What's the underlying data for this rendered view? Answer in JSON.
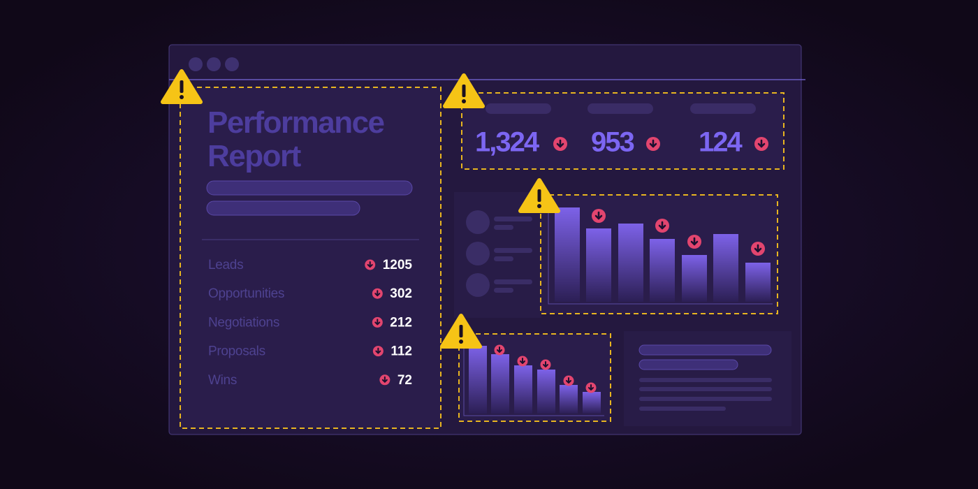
{
  "report": {
    "title_line1": "Performance",
    "title_line2": "Report",
    "rows": [
      {
        "label": "Leads",
        "value": "1205"
      },
      {
        "label": "Opportunities",
        "value": "302"
      },
      {
        "label": "Negotiations",
        "value": "212"
      },
      {
        "label": "Proposals",
        "value": "112"
      },
      {
        "label": "Wins",
        "value": "72"
      }
    ]
  },
  "kpis": [
    "1,324",
    "953",
    "124"
  ]
}
